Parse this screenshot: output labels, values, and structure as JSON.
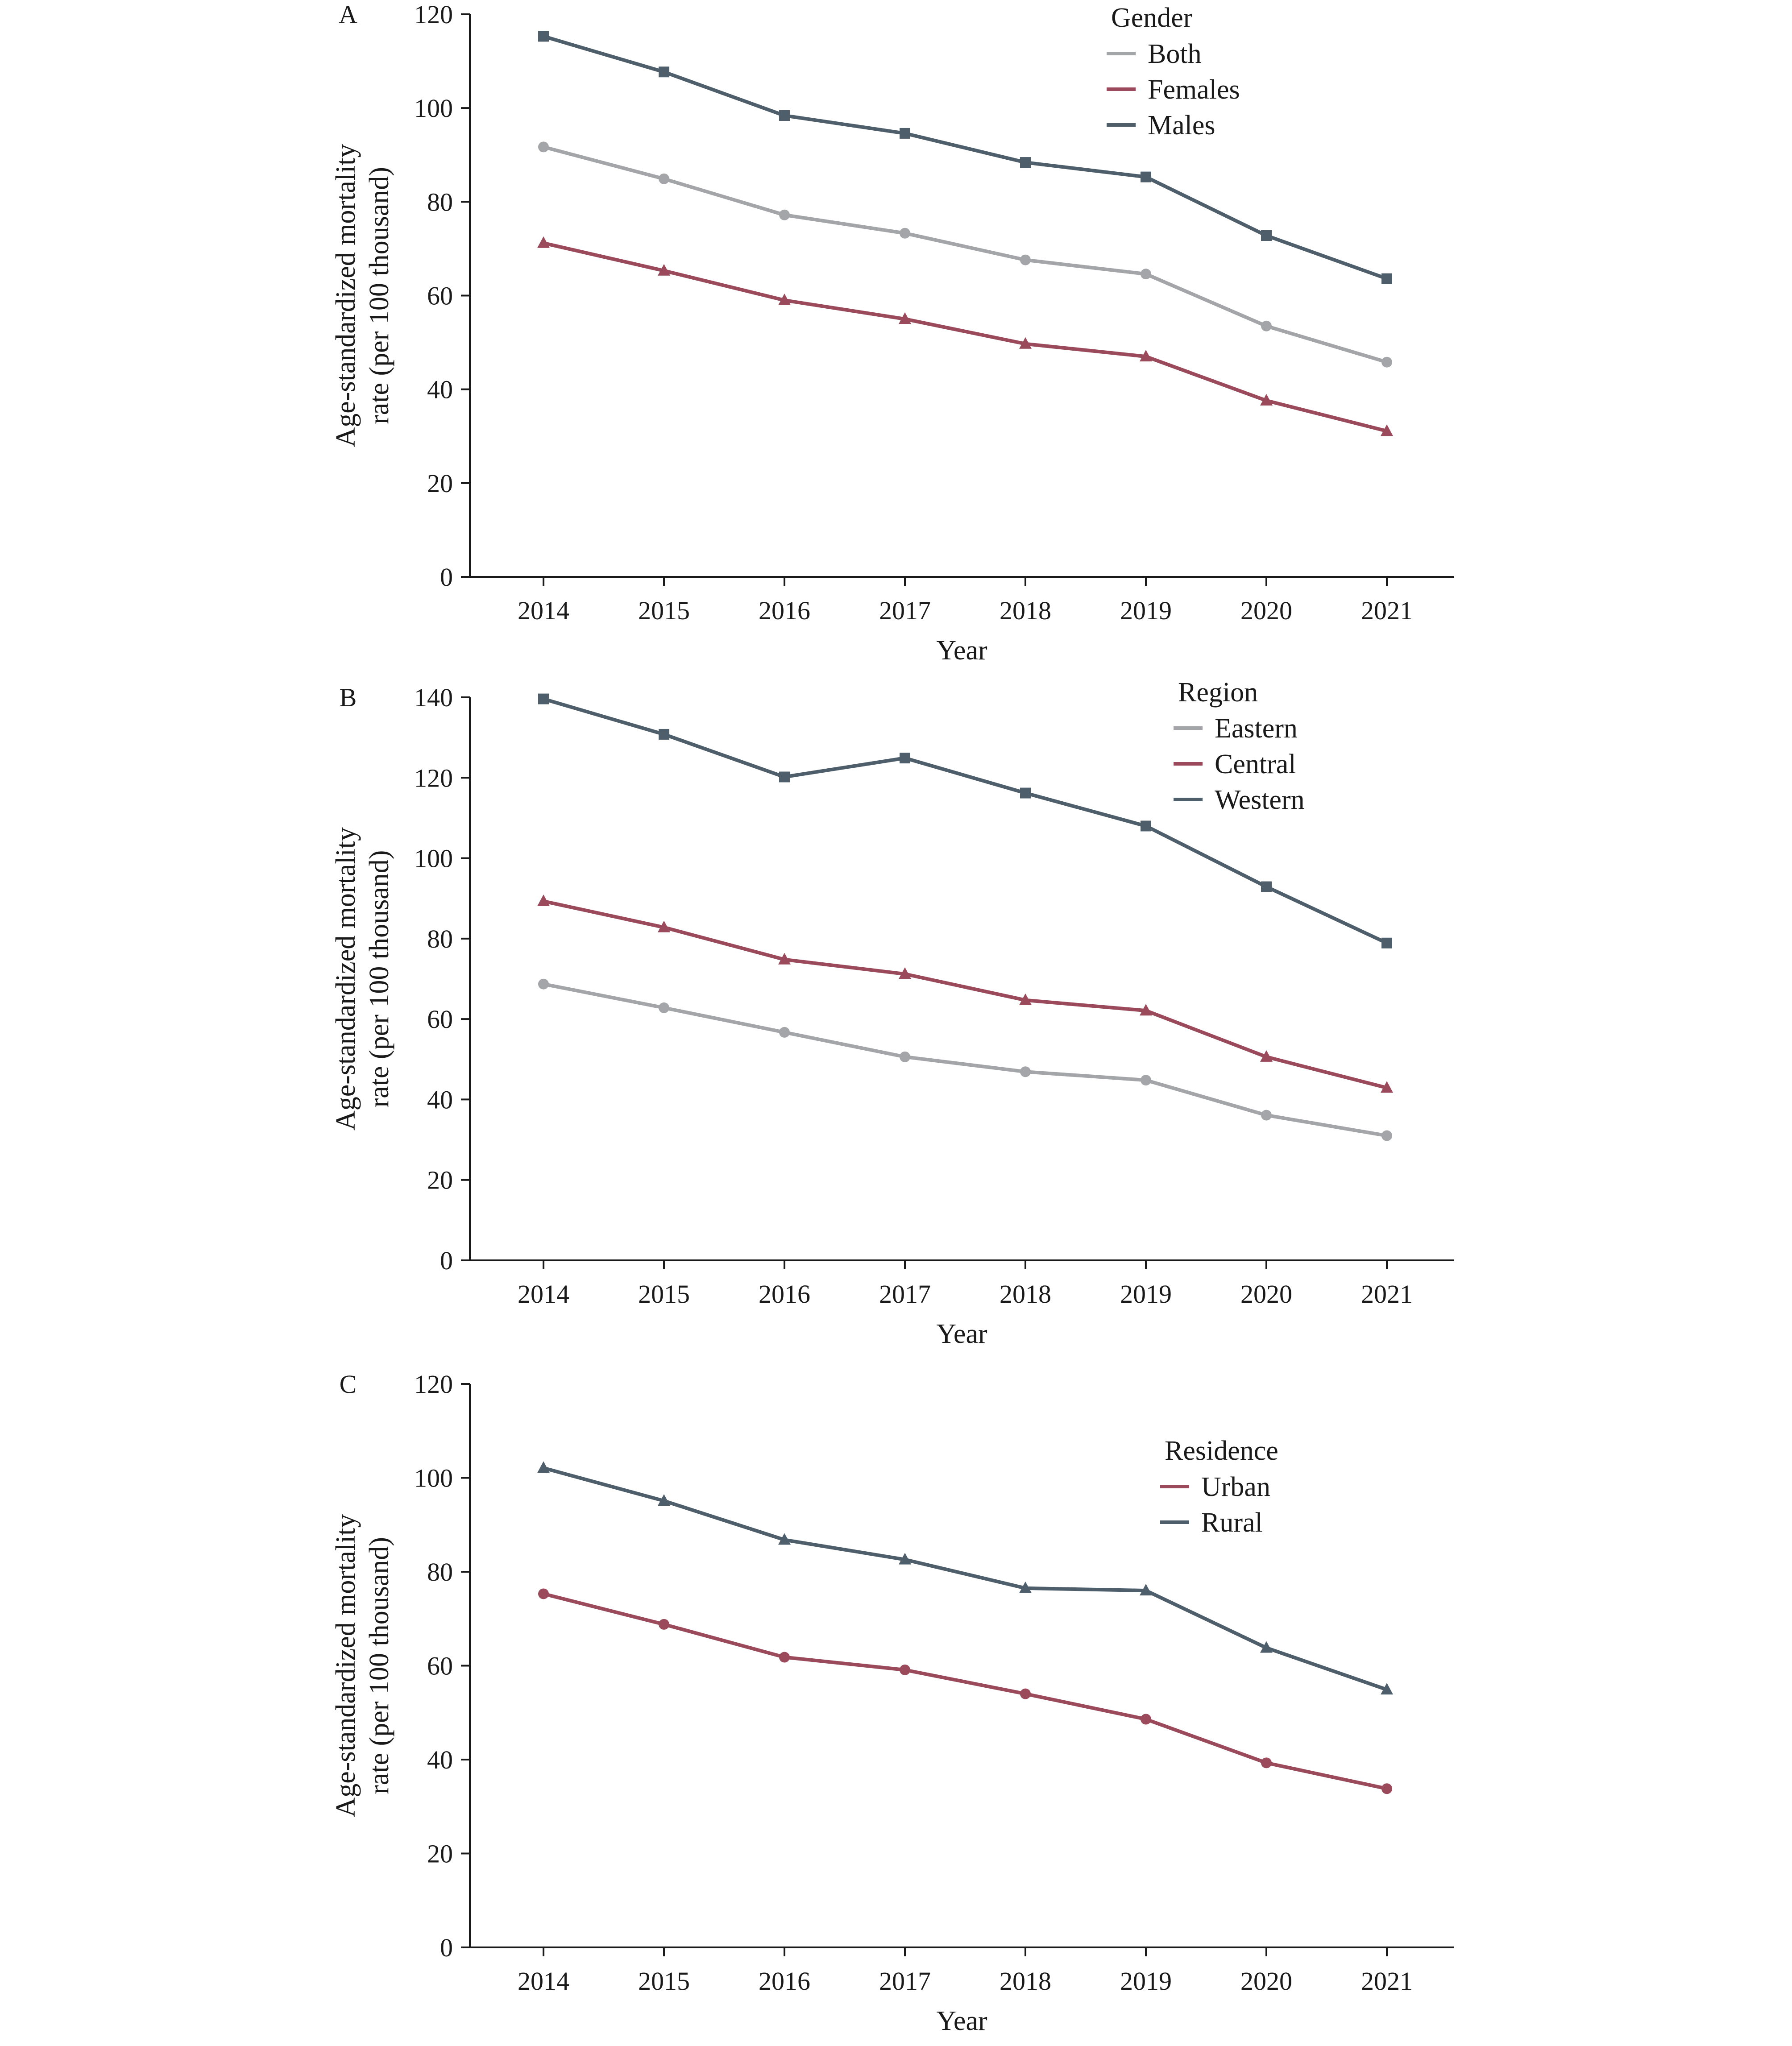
{
  "chart_data": [
    {
      "panel": "A",
      "type": "line",
      "x": [
        2014,
        2015,
        2016,
        2017,
        2018,
        2019,
        2020,
        2021
      ],
      "xlabel": "Year",
      "ylabel_lines": [
        "Age-standardized mortality",
        "rate (per 100 thousand)"
      ],
      "ylim": [
        0,
        120
      ],
      "yticks": [
        0,
        20,
        40,
        60,
        80,
        100,
        120
      ],
      "grid": false,
      "legend": {
        "title": "Gender",
        "position": "top-right"
      },
      "series": [
        {
          "name": "Both",
          "color": "#a3a5a8",
          "marker": "circle",
          "values": [
            91.7,
            84.9,
            77.2,
            73.3,
            67.6,
            64.6,
            53.5,
            45.8
          ]
        },
        {
          "name": "Females",
          "color": "#9b4a5c",
          "marker": "triangle",
          "values": [
            71.2,
            65.3,
            59.0,
            55.0,
            49.7,
            47.0,
            37.6,
            31.1
          ]
        },
        {
          "name": "Males",
          "color": "#4e5f6b",
          "marker": "square",
          "values": [
            115.3,
            107.7,
            98.4,
            94.6,
            88.4,
            85.3,
            72.8,
            63.6
          ]
        }
      ]
    },
    {
      "panel": "B",
      "type": "line",
      "x": [
        2014,
        2015,
        2016,
        2017,
        2018,
        2019,
        2020,
        2021
      ],
      "xlabel": "Year",
      "ylabel_lines": [
        "Age-standardized mortality",
        "rate (per 100 thousand)"
      ],
      "ylim": [
        0,
        140
      ],
      "yticks": [
        0,
        20,
        40,
        60,
        80,
        100,
        120,
        140
      ],
      "grid": false,
      "legend": {
        "title": "Region",
        "position": "top-right"
      },
      "series": [
        {
          "name": "Eastern",
          "color": "#a3a5a8",
          "marker": "circle",
          "values": [
            68.7,
            62.8,
            56.7,
            50.6,
            46.9,
            44.8,
            36.1,
            31.0
          ]
        },
        {
          "name": "Central",
          "color": "#9b4a5c",
          "marker": "triangle",
          "values": [
            89.3,
            82.8,
            74.8,
            71.2,
            64.7,
            62.1,
            50.6,
            42.9
          ]
        },
        {
          "name": "Western",
          "color": "#4e5f6b",
          "marker": "square",
          "values": [
            139.6,
            130.8,
            120.2,
            124.9,
            116.2,
            108.0,
            92.9,
            78.9
          ]
        }
      ]
    },
    {
      "panel": "C",
      "type": "line",
      "x": [
        2014,
        2015,
        2016,
        2017,
        2018,
        2019,
        2020,
        2021
      ],
      "xlabel": "Year",
      "ylabel_lines": [
        "Age-standardized mortality",
        "rate (per 100 thousand)"
      ],
      "ylim": [
        0,
        120
      ],
      "yticks": [
        0,
        20,
        40,
        60,
        80,
        100,
        120
      ],
      "grid": false,
      "legend": {
        "title": "Residence",
        "position": "top-right"
      },
      "series": [
        {
          "name": "Urban",
          "color": "#9b4a5c",
          "marker": "circle",
          "values": [
            75.3,
            68.8,
            61.8,
            59.1,
            54.0,
            48.6,
            39.3,
            33.8
          ]
        },
        {
          "name": "Rural",
          "color": "#4e5f6b",
          "marker": "triangle",
          "values": [
            102.1,
            95.1,
            86.8,
            82.6,
            76.5,
            76.0,
            63.8,
            54.9
          ]
        }
      ]
    }
  ]
}
